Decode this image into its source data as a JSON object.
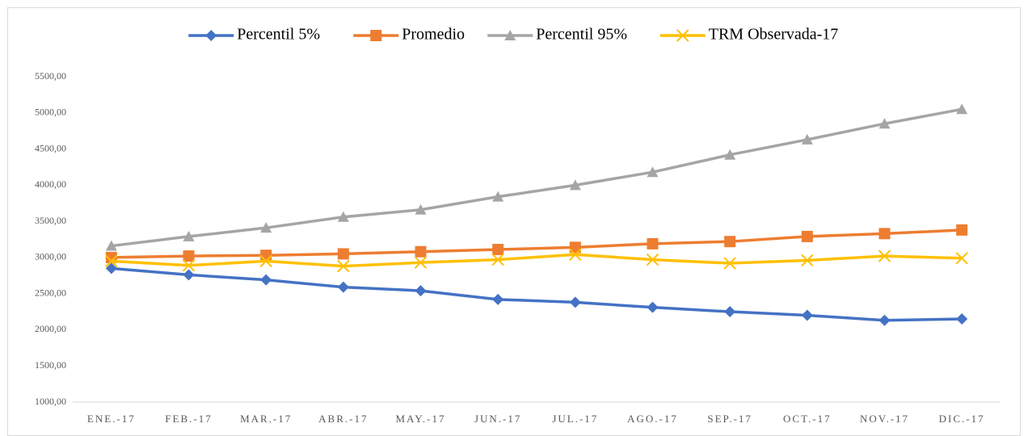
{
  "chart_data": {
    "type": "line",
    "categories": [
      "ENE.-17",
      "FEB.-17",
      "MAR.-17",
      "ABR.-17",
      "MAY.-17",
      "JUN.-17",
      "JUL.-17",
      "AGO.-17",
      "SEP.-17",
      "OCT.-17",
      "NOV.-17",
      "DIC.-17"
    ],
    "series": [
      {
        "name": "Percentil 5%",
        "color": "#4472c4",
        "marker": "diamond",
        "values": [
          2850,
          2760,
          2690,
          2590,
          2540,
          2420,
          2380,
          2310,
          2250,
          2200,
          2130,
          2150
        ]
      },
      {
        "name": "Promedio",
        "color": "#ed7d31",
        "marker": "square",
        "values": [
          3000,
          3020,
          3030,
          3050,
          3080,
          3110,
          3140,
          3190,
          3220,
          3290,
          3330,
          3380
        ]
      },
      {
        "name": "Percentil 95%",
        "color": "#a5a5a5",
        "marker": "triangle",
        "values": [
          3160,
          3290,
          3410,
          3560,
          3660,
          3840,
          4000,
          4180,
          4420,
          4630,
          4850,
          5050
        ]
      },
      {
        "name": "TRM Observada-17",
        "color": "#ffc000",
        "marker": "x",
        "values": [
          2950,
          2890,
          2950,
          2880,
          2930,
          2970,
          3040,
          2970,
          2920,
          2960,
          3020,
          2990
        ]
      }
    ],
    "ylim": [
      1000,
      5500
    ],
    "yticks": [
      {
        "value": 1000,
        "label": "1000,00"
      },
      {
        "value": 1500,
        "label": "1500,00"
      },
      {
        "value": 2000,
        "label": "2000,00"
      },
      {
        "value": 2500,
        "label": "2500,00"
      },
      {
        "value": 3000,
        "label": "3000,00"
      },
      {
        "value": 3500,
        "label": "3500,00"
      },
      {
        "value": 4000,
        "label": "4000,00"
      },
      {
        "value": 4500,
        "label": "4500,00"
      },
      {
        "value": 5000,
        "label": "5000,00"
      },
      {
        "value": 5500,
        "label": "5500,00"
      }
    ],
    "grid": false,
    "legend": "top"
  }
}
